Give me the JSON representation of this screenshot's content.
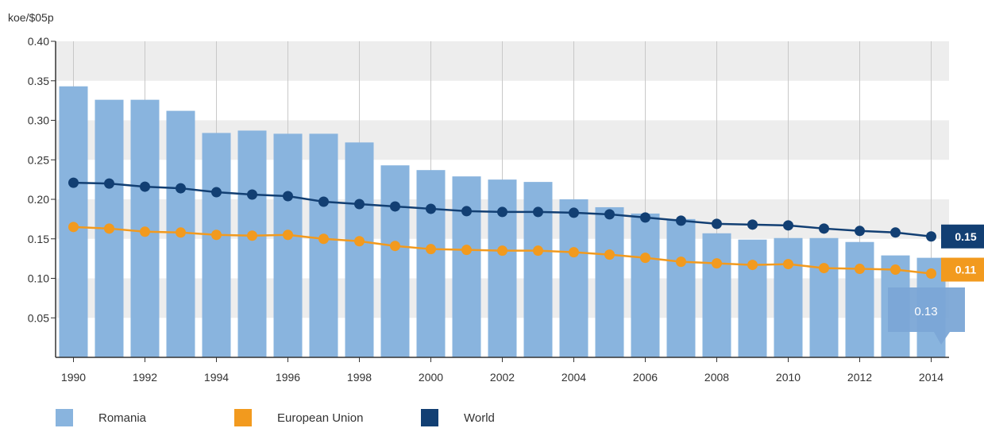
{
  "chart_data": {
    "type": "bar",
    "ylabel": "koe/$05p",
    "ylim": [
      0,
      0.4
    ],
    "yticks": [
      "0.40",
      "0.35",
      "0.30",
      "0.25",
      "0.20",
      "0.15",
      "0.10",
      "0.05"
    ],
    "xtick_labels": [
      "1990",
      "1992",
      "1994",
      "1996",
      "1998",
      "2000",
      "2002",
      "2004",
      "2006",
      "2008",
      "2010",
      "2012",
      "2014"
    ],
    "years": [
      1990,
      1991,
      1992,
      1993,
      1994,
      1995,
      1996,
      1997,
      1998,
      1999,
      2000,
      2001,
      2002,
      2003,
      2004,
      2005,
      2006,
      2007,
      2008,
      2009,
      2010,
      2011,
      2012,
      2013,
      2014
    ],
    "series": [
      {
        "name": "Romania",
        "kind": "bar",
        "color": "#89b4de",
        "values": [
          0.343,
          0.326,
          0.326,
          0.312,
          0.284,
          0.287,
          0.283,
          0.283,
          0.272,
          0.243,
          0.237,
          0.229,
          0.225,
          0.222,
          0.2,
          0.19,
          0.182,
          0.175,
          0.157,
          0.149,
          0.151,
          0.151,
          0.146,
          0.129,
          0.126
        ]
      },
      {
        "name": "European Union",
        "kind": "line",
        "color": "#f29a1e",
        "values": [
          0.165,
          0.163,
          0.159,
          0.158,
          0.155,
          0.154,
          0.155,
          0.15,
          0.147,
          0.141,
          0.137,
          0.136,
          0.135,
          0.135,
          0.133,
          0.13,
          0.126,
          0.121,
          0.119,
          0.117,
          0.118,
          0.113,
          0.112,
          0.111,
          0.106
        ]
      },
      {
        "name": "World",
        "kind": "line",
        "color": "#123f73",
        "values": [
          0.221,
          0.22,
          0.216,
          0.214,
          0.209,
          0.206,
          0.204,
          0.197,
          0.194,
          0.191,
          0.188,
          0.185,
          0.184,
          0.184,
          0.183,
          0.181,
          0.177,
          0.173,
          0.169,
          0.168,
          0.167,
          0.163,
          0.16,
          0.158,
          0.153
        ]
      }
    ],
    "end_labels": {
      "world": {
        "text": "0.15",
        "color": "#123f73"
      },
      "eu": {
        "text": "0.11",
        "color": "#f29a1e"
      }
    },
    "tooltip": {
      "text": "0.13",
      "color": "#7ba7d6"
    },
    "grid": true,
    "legend": {
      "position": "bottom-left",
      "items": [
        {
          "label": "Romania",
          "color": "#89b4de"
        },
        {
          "label": "European Union",
          "color": "#f29a1e"
        },
        {
          "label": "World",
          "color": "#123f73"
        }
      ]
    }
  }
}
